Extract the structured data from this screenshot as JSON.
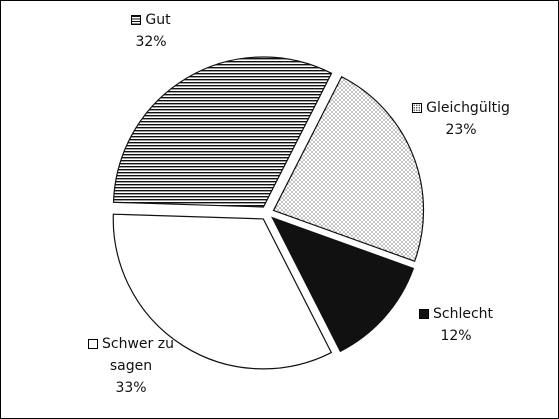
{
  "chart_data": {
    "type": "pie",
    "categories": [
      "Gleichgültig",
      "Schlecht",
      "Schwer zu sagen",
      "Gut"
    ],
    "values": [
      23,
      12,
      33,
      32
    ],
    "value_labels": [
      "23%",
      "12%",
      "33%",
      "32%"
    ],
    "fills": [
      "dots",
      "black",
      "white",
      "hlines"
    ]
  }
}
